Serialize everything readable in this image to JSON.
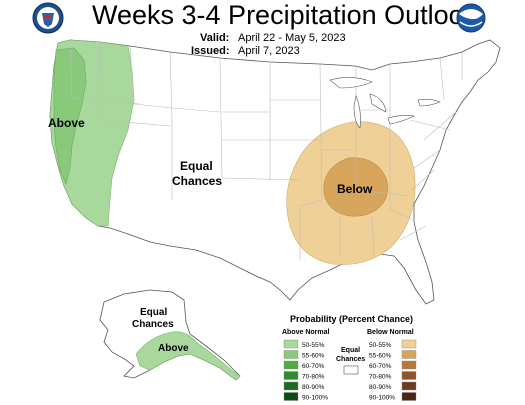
{
  "header": {
    "title": "Weeks 3-4 Precipitation Outlook",
    "valid_label": "Valid:",
    "valid_value": "April 22 - May 5, 2023",
    "issued_label": "Issued:",
    "issued_value": "April 7, 2023"
  },
  "logos": {
    "left": "department-of-commerce-seal",
    "right": "noaa-logo"
  },
  "map_labels": {
    "above_west": "Above",
    "equal_chances_line1": "Equal",
    "equal_chances_line2": "Chances",
    "below": "Below",
    "alaska_equal_line1": "Equal",
    "alaska_equal_line2": "Chances",
    "alaska_above": "Above"
  },
  "legend": {
    "title": "Probability (Percent Chance)",
    "above_heading": "Above Normal",
    "below_heading": "Below Normal",
    "equal_line1": "Equal",
    "equal_line2": "Chances",
    "above_bins": [
      {
        "label": "50-55%",
        "color": "#a8d89b"
      },
      {
        "label": "55-60%",
        "color": "#88c97a"
      },
      {
        "label": "60-70%",
        "color": "#4ead3e"
      },
      {
        "label": "70-80%",
        "color": "#2e8b2e"
      },
      {
        "label": "80-90%",
        "color": "#1e6b22"
      },
      {
        "label": "90-100%",
        "color": "#0e4a14"
      }
    ],
    "below_bins": [
      {
        "label": "50-55%",
        "color": "#efd197"
      },
      {
        "label": "55-60%",
        "color": "#d8a55c"
      },
      {
        "label": "60-70%",
        "color": "#b87a3a"
      },
      {
        "label": "70-80%",
        "color": "#93532a"
      },
      {
        "label": "80-90%",
        "color": "#6e3a20"
      },
      {
        "label": "90-100%",
        "color": "#4a2414"
      }
    ]
  },
  "colors": {
    "above_light": "#a8d89b",
    "above_mid": "#88c97a",
    "below_light": "#efd197",
    "below_mid": "#d8a55c"
  }
}
